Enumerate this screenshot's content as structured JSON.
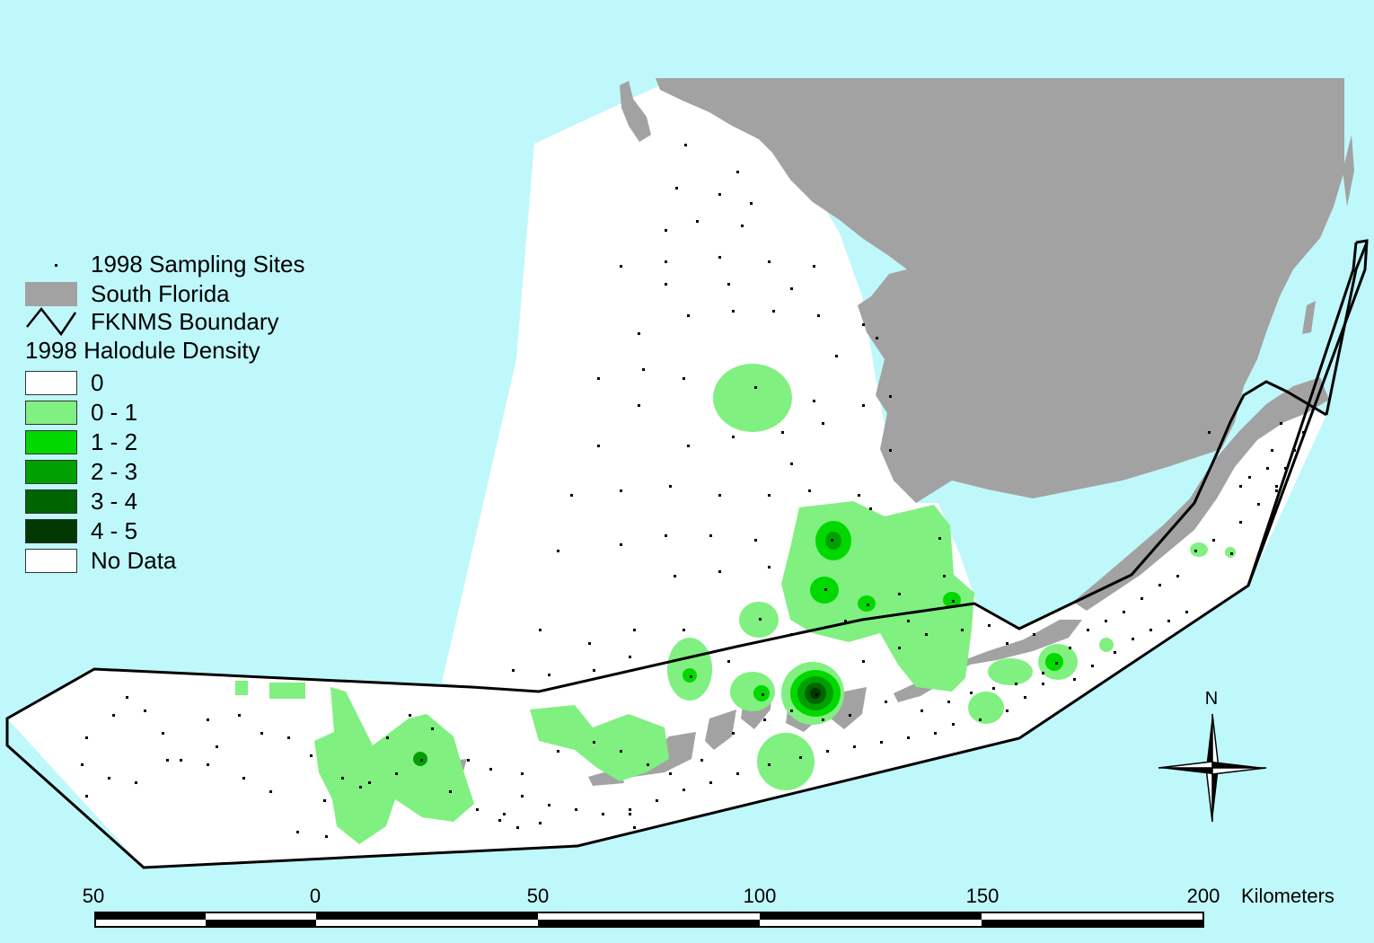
{
  "legend": {
    "sites_label": "1998 Sampling Sites",
    "land_label": "South Florida",
    "boundary_label": "FKNMS Boundary",
    "density_title": "1998 Halodule Density",
    "classes": [
      {
        "label": "0",
        "color": "#ffffff"
      },
      {
        "label": "0 - 1",
        "color": "#80f080"
      },
      {
        "label": "1 - 2",
        "color": "#00d800"
      },
      {
        "label": "2 - 3",
        "color": "#00a000"
      },
      {
        "label": "3 - 4",
        "color": "#006400"
      },
      {
        "label": "4 - 5",
        "color": "#003800"
      },
      {
        "label": "No Data",
        "color": "#ffffff"
      }
    ]
  },
  "colors": {
    "water": "#bff8fa",
    "land": "#a2a2a2",
    "survey_area": "#ffffff",
    "boundary": "#000000"
  },
  "north_arrow": {
    "label": "N",
    "icon": "compass-rose-icon"
  },
  "scale_bar": {
    "ticks": [
      "50",
      "0",
      "50",
      "100",
      "150",
      "200"
    ],
    "unit": "Kilometers"
  }
}
